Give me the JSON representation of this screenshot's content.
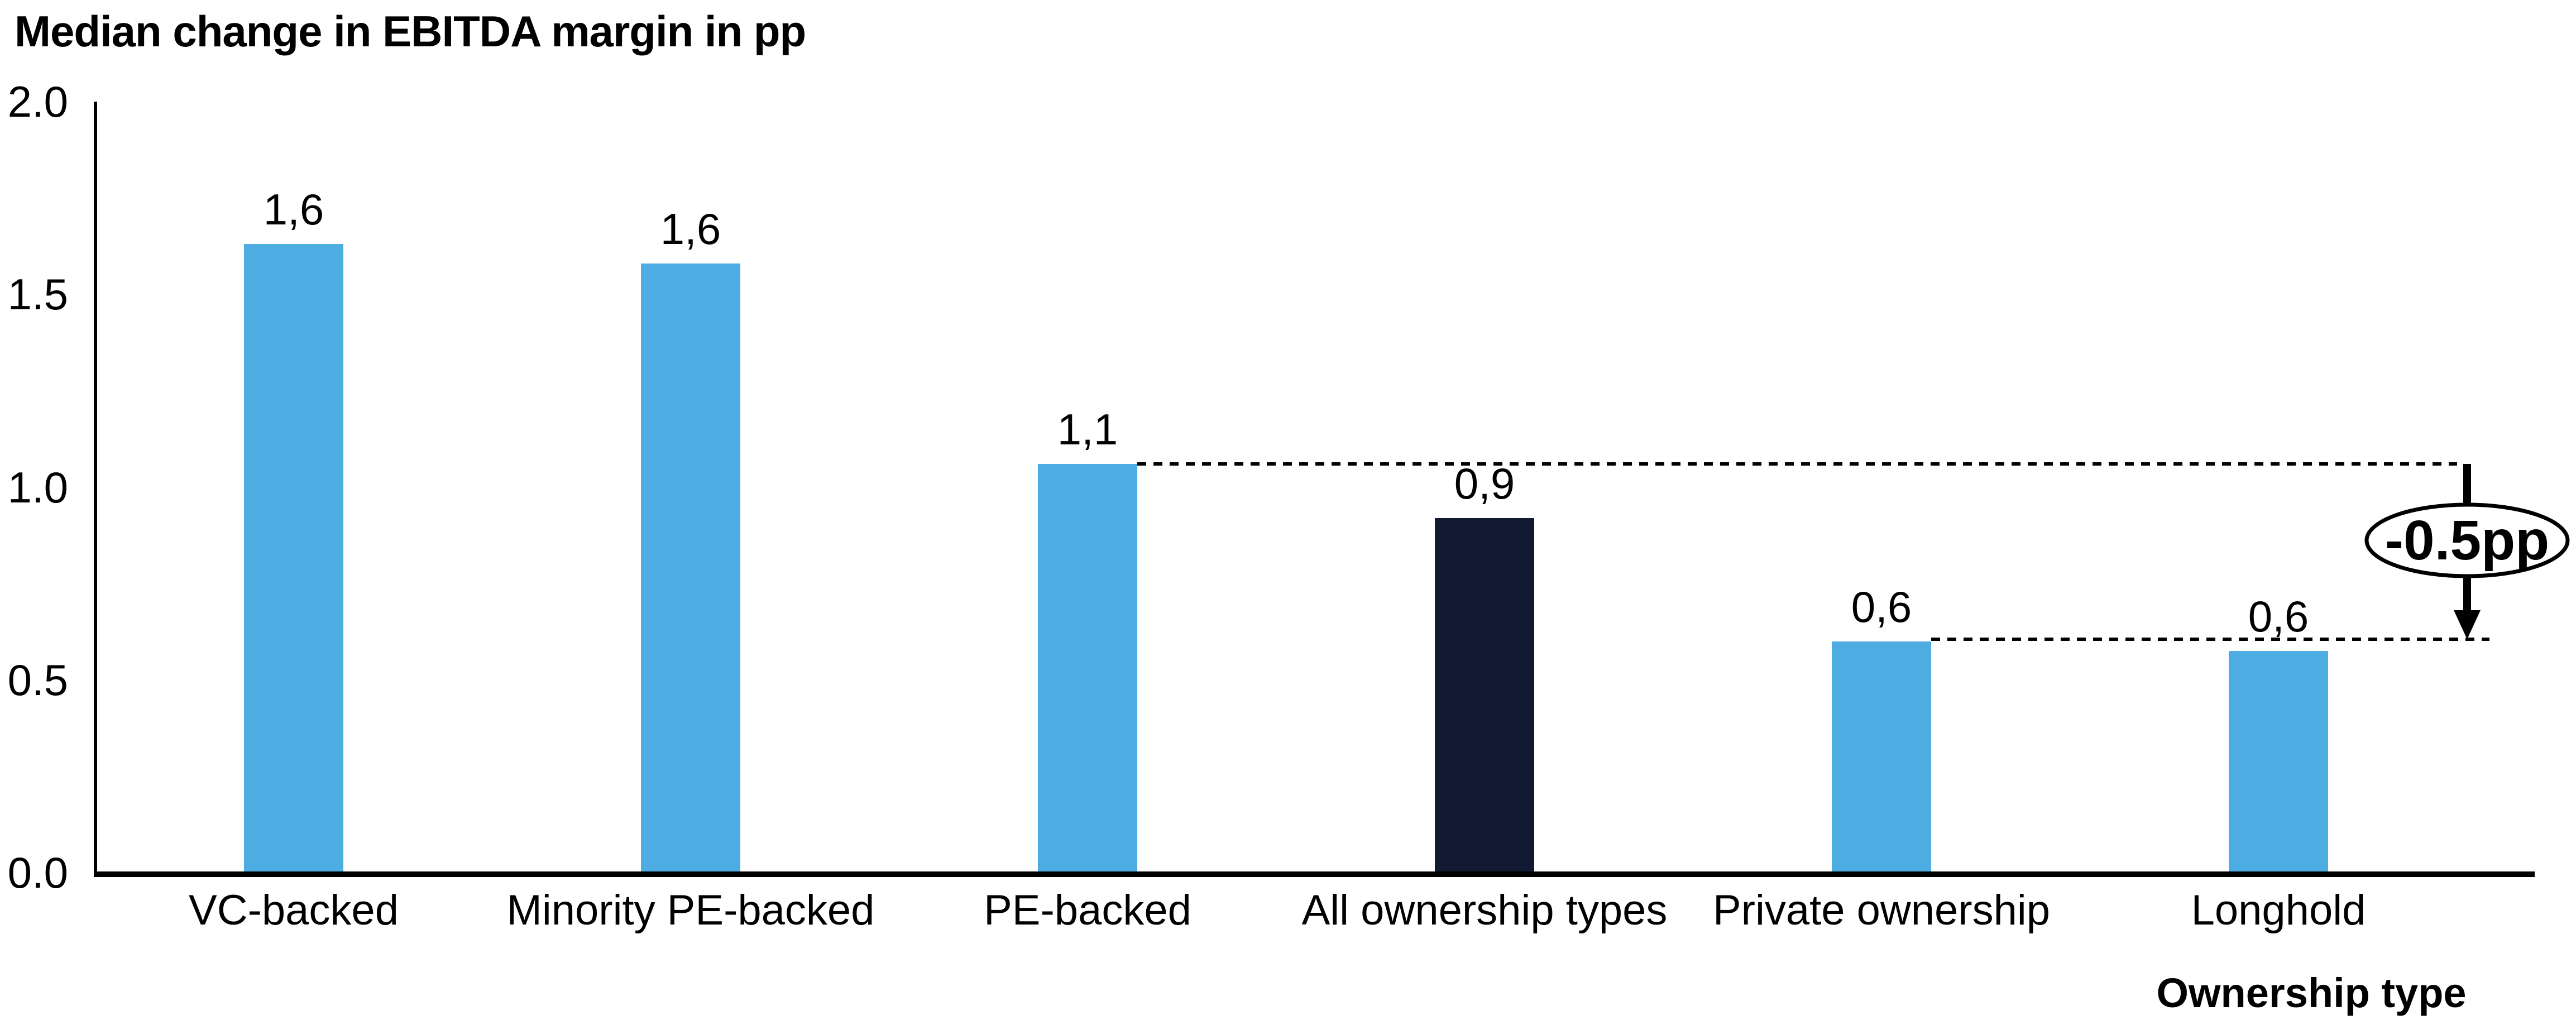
{
  "chart_data": {
    "type": "bar",
    "title": "Median change in EBITDA margin in pp",
    "xlabel": "Ownership type",
    "ylabel": "",
    "categories": [
      "VC-backed",
      "Minority PE-backed",
      "PE-backed",
      "All ownership types",
      "Private ownership",
      "Longhold"
    ],
    "values": [
      1.63,
      1.58,
      1.06,
      0.92,
      0.6,
      0.575
    ],
    "value_labels": [
      "1,6",
      "1,6",
      "1,1",
      "0,9",
      "0,6",
      "0,6"
    ],
    "bar_colors": [
      "#4DACE2",
      "#4DACE2",
      "#4DACE2",
      "#121A33",
      "#4DACE2",
      "#4DACE2"
    ],
    "ylim": [
      0,
      2.0
    ],
    "yticks": [
      {
        "label": "0.0",
        "value": 0.0
      },
      {
        "label": "0.5",
        "value": 0.5
      },
      {
        "label": "1.0",
        "value": 1.0
      },
      {
        "label": "1.5",
        "value": 1.5
      },
      {
        "label": "2.0",
        "value": 2.0
      }
    ],
    "grid": false,
    "legend": null,
    "colors": {
      "bar_blue": "#4DACE2",
      "bar_dark": "#121A33",
      "axis": "#000000",
      "annotation_fill": "#ffffff",
      "annotation_stroke": "#000000"
    },
    "annotation": {
      "text": "-0.5pp",
      "from_category": "PE-backed",
      "to_category": "Private ownership",
      "top_level": 1.06,
      "bottom_level": 0.6
    }
  }
}
